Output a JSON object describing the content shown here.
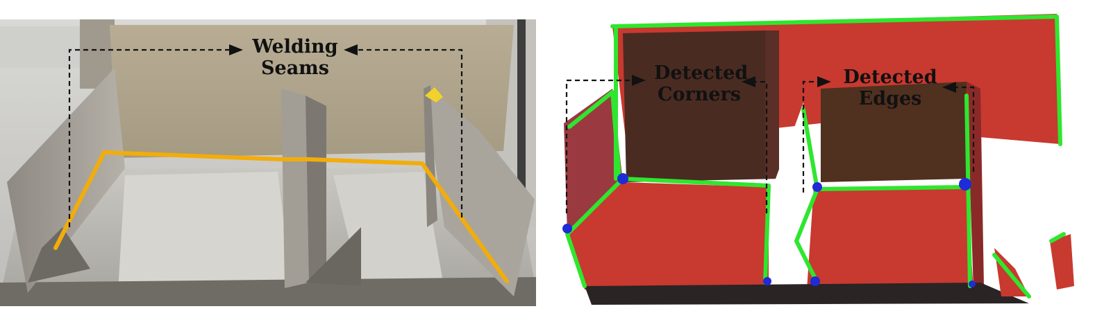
{
  "left_panel": {
    "label_line1": "Welding",
    "label_line2": "Seams",
    "seam_color": "#f2ad0b",
    "arrow_color": "#111111"
  },
  "right_panel": {
    "corners_line1": "Detected",
    "corners_line2": "Corners",
    "edges_line1": "Detected",
    "edges_line2": "Edges",
    "surface_color": "#c8392f",
    "edge_color": "#2fe62f",
    "corner_color": "#1f2bd6",
    "arrow_color": "#111111"
  }
}
